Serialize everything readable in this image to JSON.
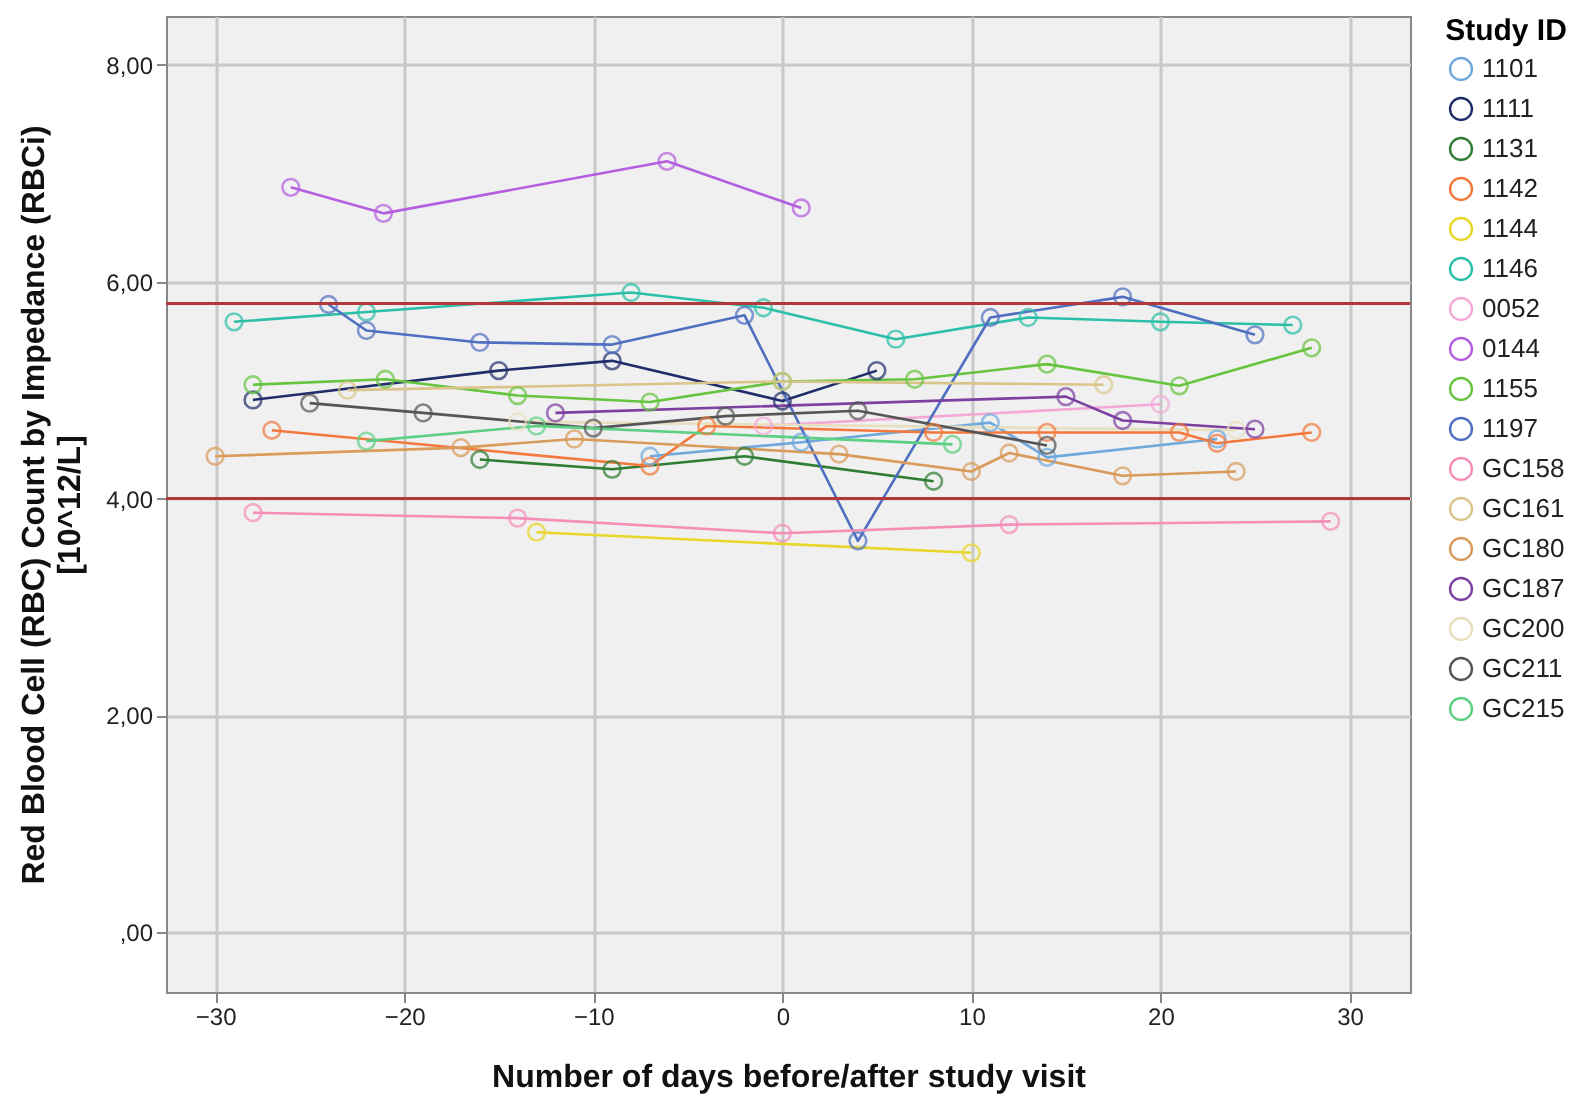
{
  "chart_data": {
    "type": "line",
    "xlabel": "Number of days before/after study visit",
    "ylabel": "Red Blood Cell (RBC) Count by Impedance (RBCi)\n[10^12/L]",
    "legend_title": "Study ID",
    "legend": "right",
    "grid": true,
    "marker": "circle",
    "xlim": [
      -32.6,
      33.2
    ],
    "xticks": [
      -30,
      -20,
      -10,
      0,
      10,
      20,
      30
    ],
    "ylim": [
      -0.55,
      8.45
    ],
    "yticks": [
      {
        "value": 0,
        "label": ",00"
      },
      {
        "value": 2,
        "label": "2,00"
      },
      {
        "value": 4,
        "label": "4,00"
      },
      {
        "value": 6,
        "label": "6,00"
      },
      {
        "value": 8,
        "label": "8,00"
      }
    ],
    "ref_lines": [
      {
        "axis": "y",
        "value": 5.8,
        "color": "#b03a3a"
      },
      {
        "axis": "y",
        "value": 4.0,
        "color": "#b03a3a"
      }
    ],
    "series": [
      {
        "name": "1101",
        "color": "#6fa8dc",
        "x": [
          -7,
          1,
          11,
          14,
          23
        ],
        "values": [
          4.39,
          4.52,
          4.7,
          4.38,
          4.55
        ]
      },
      {
        "name": "1111",
        "color": "#1f2d6b",
        "x": [
          -28,
          -15,
          -9,
          0,
          5
        ],
        "values": [
          4.91,
          5.18,
          5.27,
          4.9,
          5.18
        ]
      },
      {
        "name": "1131",
        "color": "#2e7d32",
        "x": [
          -16,
          -9,
          -2,
          8
        ],
        "values": [
          4.36,
          4.27,
          4.39,
          4.16
        ]
      },
      {
        "name": "1142",
        "color": "#f4783c",
        "x": [
          -27,
          -7,
          -4,
          8,
          14,
          21,
          23,
          28
        ],
        "values": [
          4.63,
          4.3,
          4.67,
          4.61,
          4.61,
          4.61,
          4.51,
          4.61
        ]
      },
      {
        "name": "1144",
        "color": "#e8d62a",
        "x": [
          -13,
          10
        ],
        "values": [
          3.69,
          3.5
        ]
      },
      {
        "name": "1146",
        "color": "#2bbfa8",
        "x": [
          -29,
          -22,
          -8,
          -1,
          6,
          13,
          20,
          27
        ],
        "values": [
          5.63,
          5.72,
          5.9,
          5.76,
          5.47,
          5.67,
          5.63,
          5.6
        ]
      },
      {
        "name": "0052",
        "color": "#f5a8d8",
        "x": [
          -1,
          20
        ],
        "values": [
          4.67,
          4.87
        ]
      },
      {
        "name": "0144",
        "color": "#b45ee0",
        "x": [
          -26,
          -21.1,
          -6.1,
          1
        ],
        "values": [
          6.87,
          6.63,
          7.11,
          6.68
        ]
      },
      {
        "name": "1155",
        "color": "#66c43f",
        "x": [
          -28,
          -21,
          -14,
          -7,
          0,
          7,
          14,
          21,
          28
        ],
        "values": [
          5.05,
          5.1,
          4.95,
          4.89,
          5.08,
          5.1,
          5.24,
          5.04,
          5.39
        ]
      },
      {
        "name": "1197",
        "color": "#4f6fc0",
        "x": [
          -24,
          -22,
          -16,
          -9,
          -2,
          4,
          11,
          18,
          25
        ],
        "values": [
          5.79,
          5.55,
          5.44,
          5.42,
          5.69,
          3.61,
          5.67,
          5.86,
          5.51
        ]
      },
      {
        "name": "GC158",
        "color": "#f58eb8",
        "x": [
          -28,
          -14,
          0,
          12,
          29
        ],
        "values": [
          3.87,
          3.82,
          3.68,
          3.76,
          3.79
        ]
      },
      {
        "name": "GC161",
        "color": "#d9c48a",
        "x": [
          -23,
          0,
          17
        ],
        "values": [
          5.0,
          5.08,
          5.05
        ]
      },
      {
        "name": "GC180",
        "color": "#d99a5a",
        "x": [
          -30,
          -17,
          -11,
          3,
          10,
          12,
          18,
          24
        ],
        "values": [
          4.39,
          4.47,
          4.55,
          4.41,
          4.25,
          4.42,
          4.21,
          4.25
        ]
      },
      {
        "name": "GC187",
        "color": "#7d3fa0",
        "x": [
          -12,
          15,
          18,
          25
        ],
        "values": [
          4.79,
          4.94,
          4.72,
          4.64
        ]
      },
      {
        "name": "GC200",
        "color": "#e8dfbf",
        "x": [
          -14,
          24
        ],
        "values": [
          4.71,
          4.63
        ]
      },
      {
        "name": "GC211",
        "color": "#555555",
        "x": [
          -25,
          -19,
          -10,
          -3,
          4,
          14
        ],
        "values": [
          4.88,
          4.79,
          4.65,
          4.76,
          4.81,
          4.49
        ]
      },
      {
        "name": "GC215",
        "color": "#5ccf82",
        "x": [
          -22,
          -13,
          9
        ],
        "values": [
          4.53,
          4.67,
          4.5
        ]
      }
    ]
  }
}
